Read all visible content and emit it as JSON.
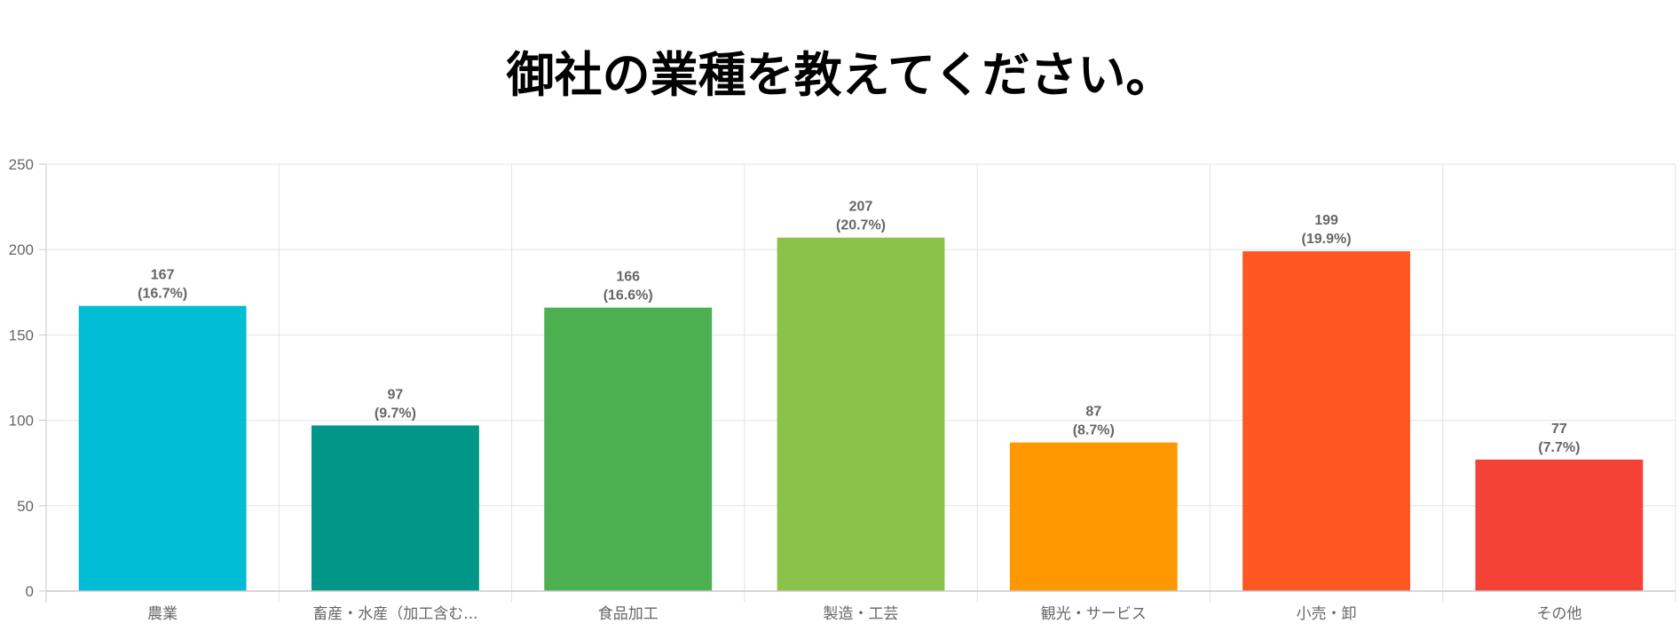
{
  "chart_data": {
    "type": "bar",
    "title": "御社の業種を教えてください。",
    "categories": [
      "農業",
      "畜産・水産（加工含む...",
      "食品加工",
      "製造・工芸",
      "観光・サービス",
      "小売・卸",
      "その他"
    ],
    "values": [
      167,
      97,
      166,
      207,
      87,
      199,
      77
    ],
    "value_labels": [
      "167",
      "97",
      "166",
      "207",
      "87",
      "199",
      "77"
    ],
    "percent_labels": [
      "(16.7%)",
      "(9.7%)",
      "(16.6%)",
      "(20.7%)",
      "(8.7%)",
      "(19.9%)",
      "(7.7%)"
    ],
    "colors": [
      "#00BCD4",
      "#009688",
      "#4CAF50",
      "#8BC34A",
      "#FF9800",
      "#FF5722",
      "#F44336"
    ],
    "y_ticks": [
      "0",
      "50",
      "100",
      "150",
      "200",
      "250"
    ],
    "ylim": [
      0,
      250
    ],
    "grid": true,
    "xlabel": "",
    "ylabel": ""
  }
}
